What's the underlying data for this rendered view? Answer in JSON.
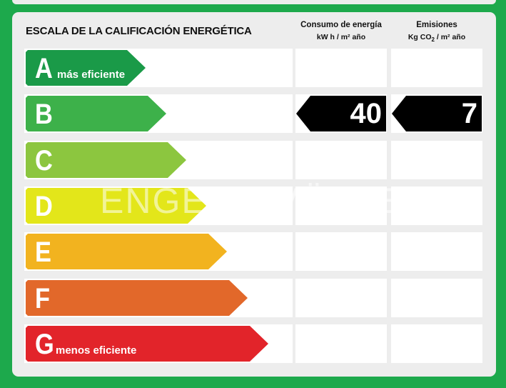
{
  "title": "ESCALA DE LA CALIFICACIÓN ENERGÉTICA",
  "columns": {
    "consumo": {
      "line1": "Consumo de energía",
      "line2": "kW h / m² año"
    },
    "emisiones": {
      "line1": "Emisiones",
      "line2": "Kg CO",
      "line2_sub": "2",
      "line2_tail": " / m² año"
    }
  },
  "ratings": [
    {
      "letter": "A",
      "note": "más eficiente",
      "color": "#1a9a48"
    },
    {
      "letter": "B",
      "note": "",
      "color": "#3db14a"
    },
    {
      "letter": "C",
      "note": "",
      "color": "#8cc63f"
    },
    {
      "letter": "D",
      "note": "",
      "color": "#e3e61a"
    },
    {
      "letter": "E",
      "note": "",
      "color": "#f2b31f"
    },
    {
      "letter": "F",
      "note": "",
      "color": "#e2682a"
    },
    {
      "letter": "G",
      "note": "menos eficiente",
      "color": "#e2242a"
    }
  ],
  "values": {
    "rating_row": "B",
    "consumo": "40",
    "emisiones": "7"
  },
  "watermark": "ENGEL & VÖLKERS"
}
